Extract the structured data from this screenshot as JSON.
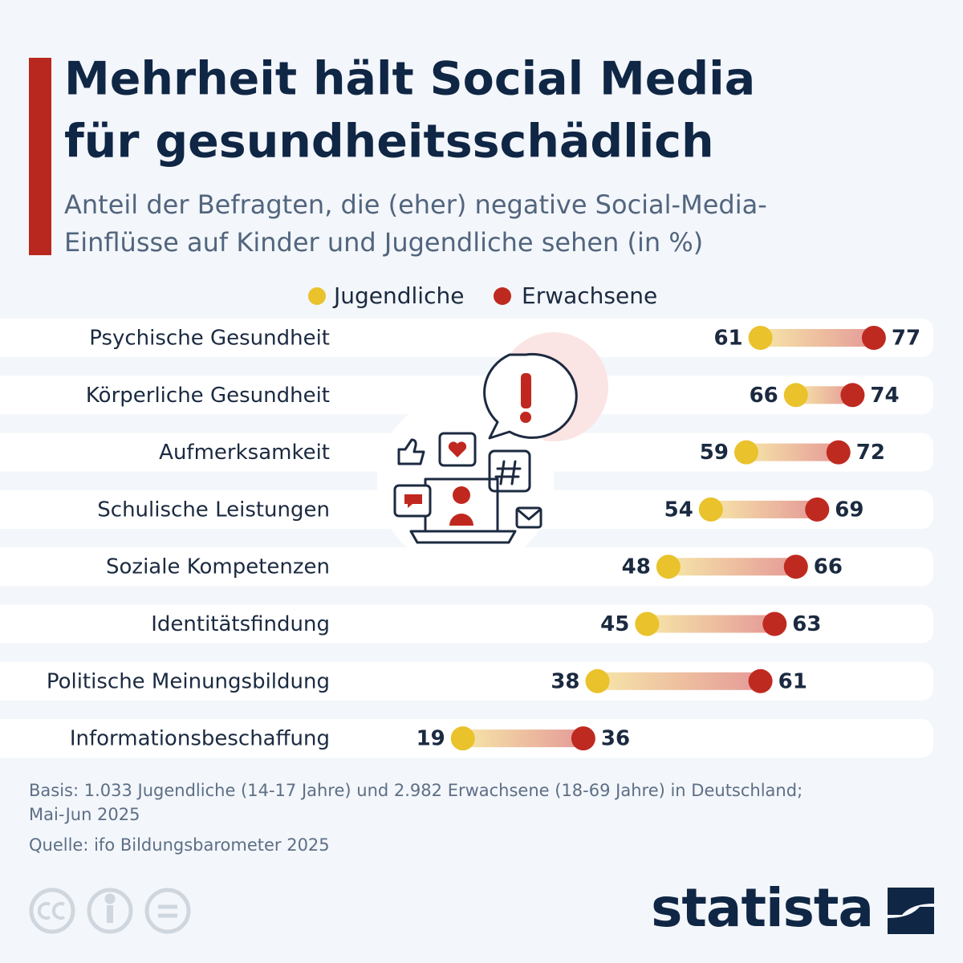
{
  "chart_data": {
    "type": "dumbbell",
    "title": [
      "Mehrheit hält Social Media",
      "für gesundheitsschädlich"
    ],
    "subtitle": [
      "Anteil der Befragten, die (eher) negative Social-Media-",
      "Einflüsse auf Kinder und Jugendliche sehen (in %)"
    ],
    "categories": [
      "Psychische Gesundheit",
      "Körperliche Gesundheit",
      "Aufmerksamkeit",
      "Schulische Leistungen",
      "Soziale Kompetenzen",
      "Identitätsfindung",
      "Politische Meinungsbildung",
      "Informationsbeschaffung"
    ],
    "series": [
      {
        "name": "Jugendliche",
        "color": "#e9c22c",
        "values": [
          61,
          66,
          59,
          54,
          48,
          45,
          38,
          19
        ]
      },
      {
        "name": "Erwachsene",
        "color": "#bf2a20",
        "values": [
          77,
          74,
          72,
          69,
          66,
          63,
          61,
          36
        ]
      }
    ],
    "notes": [
      "Basis: 1.033 Jugendliche (14-17 Jahre) und 2.982 Erwachsene (18-69 Jahre) in Deutschland;",
      "Mai-Jun 2025",
      "Quelle: ifo Bildungsbarometer 2025"
    ],
    "brand": "statista"
  }
}
